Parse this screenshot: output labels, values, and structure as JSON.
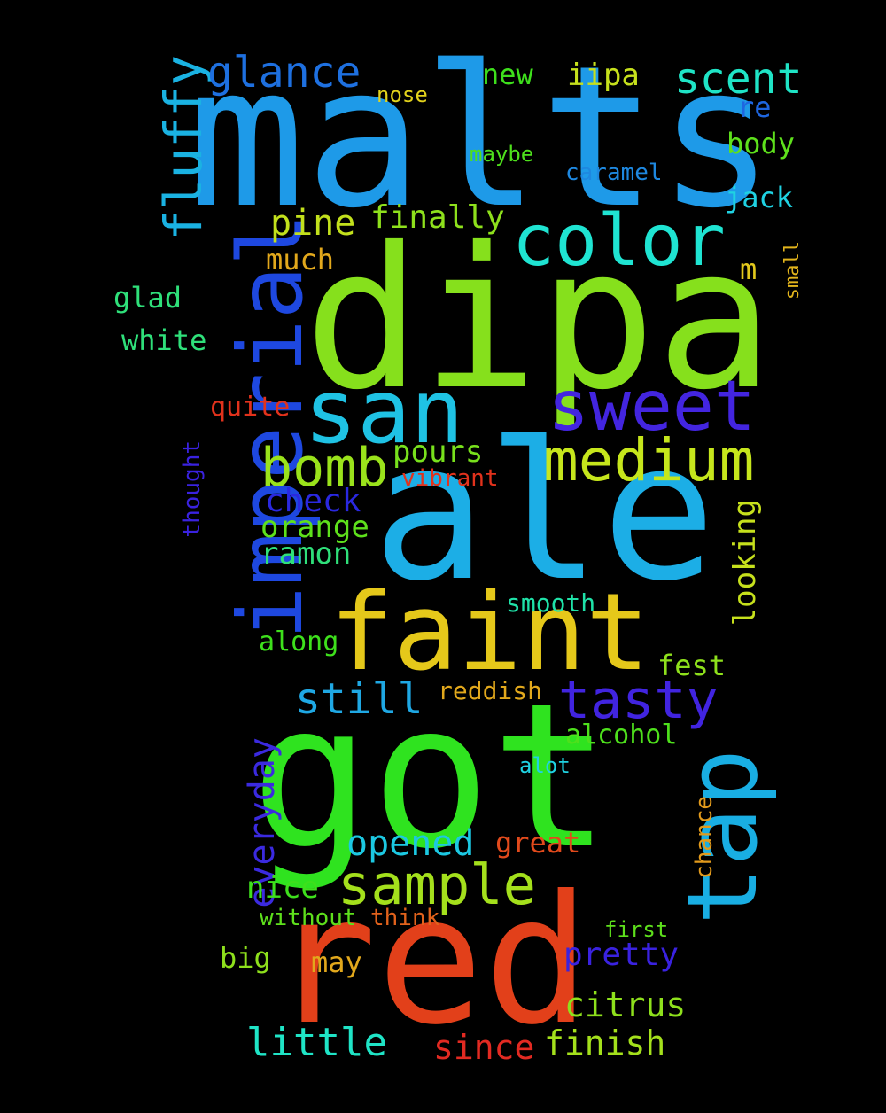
{
  "words": [
    {
      "text": "malts",
      "color": "#1e9ae8"
    },
    {
      "text": "dipa",
      "color": "#86e01c"
    },
    {
      "text": "ale",
      "color": "#1caee6"
    },
    {
      "text": "got",
      "color": "#2fe31f"
    },
    {
      "text": "red",
      "color": "#e2401a"
    },
    {
      "text": "imperial",
      "color": "#1e48e0"
    },
    {
      "text": "faint",
      "color": "#e5c81a"
    },
    {
      "text": "tap",
      "color": "#19aee3"
    },
    {
      "text": "san",
      "color": "#1fc2e4"
    },
    {
      "text": "sweet",
      "color": "#4325e0"
    },
    {
      "text": "color",
      "color": "#1fe4d2"
    },
    {
      "text": "medium",
      "color": "#c6e61c"
    },
    {
      "text": "fluffy",
      "color": "#1ab2e2"
    },
    {
      "text": "bomb",
      "color": "#9ae21b"
    },
    {
      "text": "sample",
      "color": "#a4e01c"
    },
    {
      "text": "tasty",
      "color": "#4124e0"
    },
    {
      "text": "glance",
      "color": "#1e70e0"
    },
    {
      "text": "scent",
      "color": "#1fe4c6"
    },
    {
      "text": "still",
      "color": "#1fa8e4"
    },
    {
      "text": "little",
      "color": "#1fe4c6"
    },
    {
      "text": "opened",
      "color": "#1cc8e2"
    },
    {
      "text": "everyday",
      "color": "#3b2ae0"
    },
    {
      "text": "pine",
      "color": "#c2e01c"
    },
    {
      "text": "finally",
      "color": "#8ee01c"
    },
    {
      "text": "finish",
      "color": "#a4e01c"
    },
    {
      "text": "citrus",
      "color": "#8ee01c"
    },
    {
      "text": "pretty",
      "color": "#3a22e0"
    },
    {
      "text": "since",
      "color": "#e22a22"
    },
    {
      "text": "looking",
      "color": "#c6e01c"
    },
    {
      "text": "ramon",
      "color": "#2fe07a"
    },
    {
      "text": "orange",
      "color": "#5ee01c"
    },
    {
      "text": "check",
      "color": "#2a28e0"
    },
    {
      "text": "pours",
      "color": "#78e01c"
    },
    {
      "text": "nice",
      "color": "#3ee01c"
    },
    {
      "text": "great",
      "color": "#e24a1c"
    },
    {
      "text": "iipa",
      "color": "#c6e01c"
    },
    {
      "text": "new",
      "color": "#3ee01c"
    },
    {
      "text": "body",
      "color": "#5ee01c"
    },
    {
      "text": "jack",
      "color": "#1fd2e2"
    },
    {
      "text": "alcohol",
      "color": "#4ee01c"
    },
    {
      "text": "fest",
      "color": "#8ee01c"
    },
    {
      "text": "white",
      "color": "#2fe07a"
    },
    {
      "text": "much",
      "color": "#e2a81c"
    },
    {
      "text": "along",
      "color": "#3ee01c"
    },
    {
      "text": "may",
      "color": "#e2a81c"
    },
    {
      "text": "big",
      "color": "#8ee01c"
    },
    {
      "text": "reddish",
      "color": "#e2a81c"
    },
    {
      "text": "glad",
      "color": "#2fe07a"
    },
    {
      "text": "quite",
      "color": "#e2321c"
    },
    {
      "text": "re",
      "color": "#1e66e0"
    },
    {
      "text": "m",
      "color": "#e2c81c"
    },
    {
      "text": "nose",
      "color": "#e2d21c"
    },
    {
      "text": "maybe",
      "color": "#4ee01c"
    },
    {
      "text": "caramel",
      "color": "#1e88e0"
    },
    {
      "text": "vibrant",
      "color": "#e2321c"
    },
    {
      "text": "smooth",
      "color": "#1fe2a8"
    },
    {
      "text": "alot",
      "color": "#1fd2e2"
    },
    {
      "text": "chance",
      "color": "#e29a1c"
    },
    {
      "text": "without",
      "color": "#5ee01c"
    },
    {
      "text": "think",
      "color": "#e2621c"
    },
    {
      "text": "first",
      "color": "#5ee01c"
    },
    {
      "text": "thought",
      "color": "#3a22e0"
    },
    {
      "text": "small",
      "color": "#e2b41c"
    }
  ]
}
